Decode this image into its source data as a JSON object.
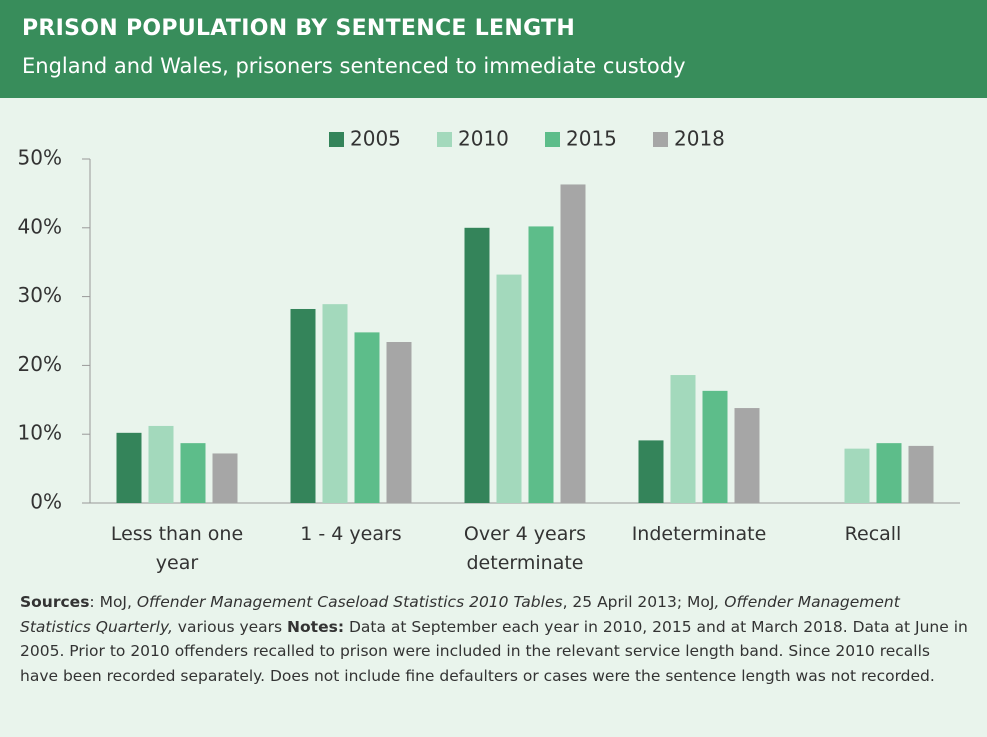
{
  "header": {
    "title": "PRISON POPULATION BY SENTENCE LENGTH",
    "subtitle": "England and Wales, prisoners sentenced to immediate custody"
  },
  "chart_data": {
    "type": "bar",
    "categories": [
      "Less than one year",
      "1 - 4 years",
      "Over 4 years determinate",
      "Indeterminate",
      "Recall"
    ],
    "series": [
      {
        "name": "2005",
        "color": "#34845a",
        "values": [
          10.2,
          28.2,
          40.0,
          9.1,
          null
        ]
      },
      {
        "name": "2010",
        "color": "#a3d9bc",
        "values": [
          11.2,
          28.9,
          33.2,
          18.6,
          7.9
        ]
      },
      {
        "name": "2015",
        "color": "#5dbd8a",
        "values": [
          8.7,
          24.8,
          40.2,
          16.3,
          8.7
        ]
      },
      {
        "name": "2018",
        "color": "#a6a6a6",
        "values": [
          7.2,
          23.4,
          46.3,
          13.8,
          8.3
        ]
      }
    ],
    "ylim": [
      0,
      50
    ],
    "yticks": [
      {
        "value": 0,
        "label": "0%"
      },
      {
        "value": 10,
        "label": "10%"
      },
      {
        "value": 20,
        "label": "20%"
      },
      {
        "value": 30,
        "label": "30%"
      },
      {
        "value": 40,
        "label": "40%"
      },
      {
        "value": 50,
        "label": "50%"
      }
    ],
    "legend": "top"
  },
  "footer": {
    "segments": [
      {
        "text": "Sources",
        "style": "bold"
      },
      {
        "text": ": MoJ, ",
        "style": "normal"
      },
      {
        "text": "Offender Management Caseload Statistics 2010 Tables",
        "style": "italic"
      },
      {
        "text": ", 25 April 2013; MoJ",
        "style": "normal"
      },
      {
        "text": ", Offender Management Statistics Quarterly,",
        "style": "italic"
      },
      {
        "text": " various years ",
        "style": "normal"
      },
      {
        "text": "Notes:",
        "style": "bold"
      },
      {
        "text": " Data at September each year in 2010, 2015 and at March 2018. Data at June in 2005. Prior to 2010 offenders recalled to prison were included in the relevant service length band. Since 2010 recalls have been recorded separately. Does not include fine defaulters or cases were the sentence length was not recorded.",
        "style": "normal"
      }
    ]
  }
}
